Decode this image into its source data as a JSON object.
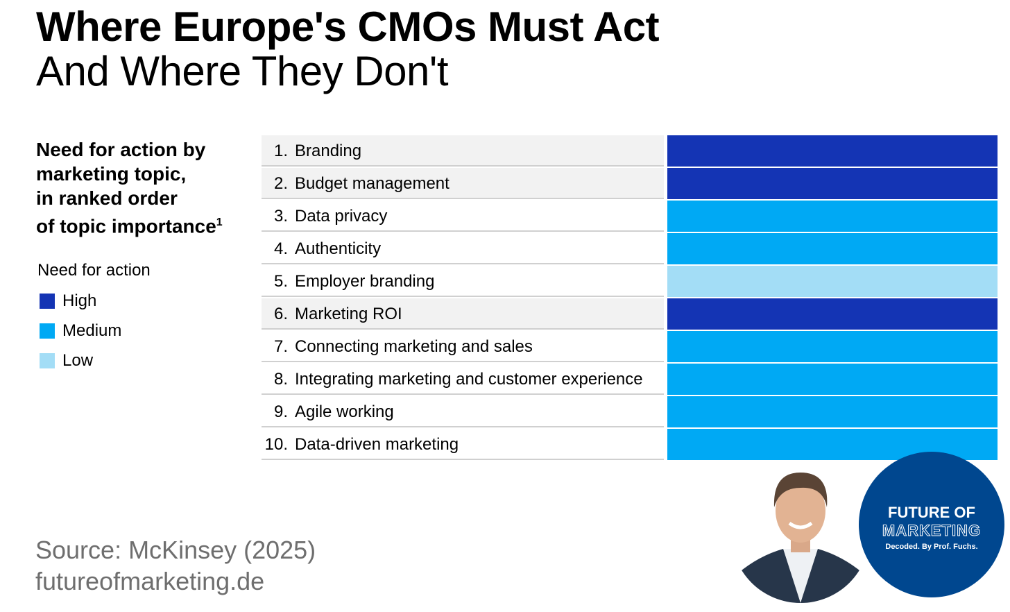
{
  "title": "Where Europe's CMOs Must Act",
  "subtitle": "And Where They Don't",
  "chart_data": {
    "type": "table",
    "title": "Need for action by marketing topic, in ranked order of topic importance",
    "title_lines": [
      "Need for action by",
      "marketing topic,",
      "in ranked order",
      "of topic importance"
    ],
    "footnote_marker": "1",
    "legend_title": "Need for action",
    "legend": [
      {
        "label": "High",
        "color": "#1434b4"
      },
      {
        "label": "Medium",
        "color": "#00a9f4"
      },
      {
        "label": "Low",
        "color": "#a3ddf6"
      }
    ],
    "rows": [
      {
        "rank": "1.",
        "topic": "Branding",
        "need": "High"
      },
      {
        "rank": "2.",
        "topic": "Budget management",
        "need": "High"
      },
      {
        "rank": "3.",
        "topic": "Data privacy",
        "need": "Medium"
      },
      {
        "rank": "4.",
        "topic": "Authenticity",
        "need": "Medium"
      },
      {
        "rank": "5.",
        "topic": "Employer branding",
        "need": "Low"
      },
      {
        "rank": "6.",
        "topic": "Marketing ROI",
        "need": "High"
      },
      {
        "rank": "7.",
        "topic": "Connecting marketing and sales",
        "need": "Medium"
      },
      {
        "rank": "8.",
        "topic": "Integrating marketing and customer experience",
        "need": "Medium"
      },
      {
        "rank": "9.",
        "topic": "Agile working",
        "need": "Medium"
      },
      {
        "rank": "10.",
        "topic": "Data-driven marketing",
        "need": "Medium"
      }
    ]
  },
  "source": "Source: McKinsey (2025)",
  "website": "futureofmarketing.de",
  "logo": {
    "line1": "FUTURE OF",
    "line2": "MARKETING",
    "line3": "Decoded. By Prof. Fuchs."
  }
}
